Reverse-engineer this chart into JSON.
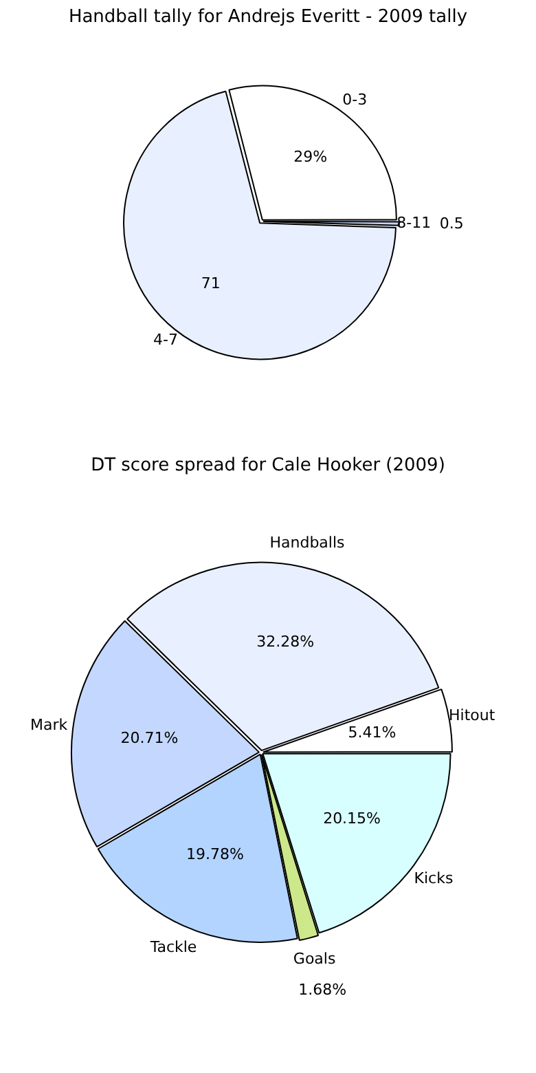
{
  "chart_data": [
    {
      "type": "pie",
      "title": "Handball tally for Andrejs Everitt - 2009 tally",
      "categories": [
        "8-11",
        "4-7",
        "0-3"
      ],
      "values": [
        0.5,
        70.5,
        29
      ],
      "value_labels": [
        "0.5",
        "71",
        "29%"
      ],
      "colors": [
        "#c4d8ff",
        "#e8f0ff",
        "#ffffff"
      ],
      "legend": false
    },
    {
      "type": "pie",
      "title": "DT score spread for Cale Hooker (2009)",
      "categories": [
        "Kicks",
        "Goals",
        "Tackle",
        "Mark",
        "Handballs",
        "Hitout"
      ],
      "values": [
        20.15,
        1.68,
        19.78,
        20.71,
        32.28,
        5.41
      ],
      "value_labels": [
        "20.15%",
        "1.68%",
        "19.78%",
        "20.71%",
        "32.28%",
        "5.41%"
      ],
      "colors": [
        "#d8ffff",
        "#cce88a",
        "#b3d4ff",
        "#c4d8ff",
        "#e8f0ff",
        "#ffffff"
      ],
      "legend": false
    }
  ]
}
